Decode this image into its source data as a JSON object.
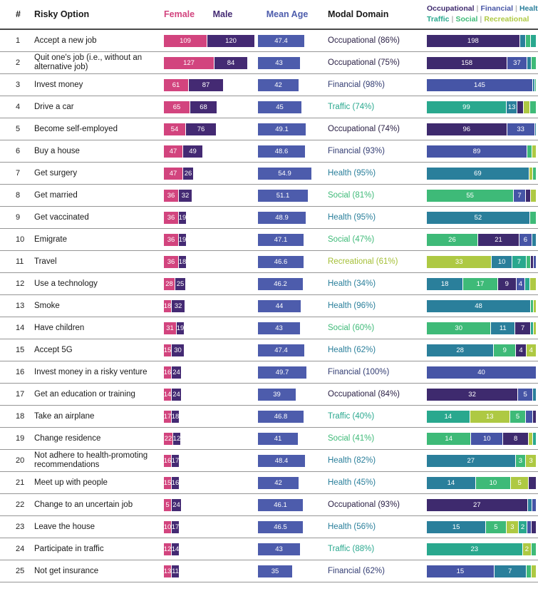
{
  "header": {
    "num": "#",
    "risky_option": "Risky Option",
    "female": "Female",
    "male": "Male",
    "mean_age": "Mean Age",
    "modal_domain": "Modal Domain"
  },
  "legend": {
    "line1": [
      "Occupational",
      "Financial",
      "Health"
    ],
    "line2": [
      "Traffic",
      "Social",
      "Recreational"
    ]
  },
  "colors": {
    "female": "#d2447e",
    "male": "#442a73",
    "mean_age": "#4d5cac",
    "occupational": "#3e2a6e",
    "financial": "#4655a6",
    "health": "#2a7f9b",
    "traffic": "#29a88e",
    "social": "#3eba78",
    "recreational": "#aec943",
    "modal_text": {
      "occupational": "#2b2146",
      "financial": "#323c72",
      "health": "#2a7f9b",
      "traffic": "#29a88e",
      "social": "#3eba78",
      "recreational": "#a4bf35"
    }
  },
  "chart_data": {
    "type": "table",
    "columns": [
      "#",
      "Risky Option",
      "Female",
      "Male",
      "Mean Age",
      "Modal Domain",
      "Domain distribution"
    ],
    "domains": [
      "Occupational",
      "Financial",
      "Health",
      "Traffic",
      "Social",
      "Recreational"
    ],
    "rows": [
      {
        "num": "1",
        "option": "Accept a new job",
        "female": 109,
        "male": 120,
        "mean_age": "47.4",
        "modal": "Occupational (86%)",
        "modal_domain": "occupational",
        "segments": [
          {
            "d": "occupational",
            "v": 198
          },
          {
            "d": "health",
            "v": 11
          },
          {
            "d": "social",
            "v": 10
          },
          {
            "d": "traffic",
            "v": 10
          }
        ]
      },
      {
        "num": "2",
        "option": "Quit one's job (i.e., without an alternative job)",
        "female": 127,
        "male": 84,
        "mean_age": "43",
        "modal": "Occupational (75%)",
        "modal_domain": "occupational",
        "segments": [
          {
            "d": "occupational",
            "v": 158
          },
          {
            "d": "financial",
            "v": 37
          },
          {
            "d": "health",
            "v": 8
          },
          {
            "d": "social",
            "v": 8
          }
        ]
      },
      {
        "num": "3",
        "option": "Invest money",
        "female": 61,
        "male": 87,
        "mean_age": "42",
        "modal": "Financial (98%)",
        "modal_domain": "financial",
        "segments": [
          {
            "d": "financial",
            "v": 145
          },
          {
            "d": "health",
            "v": 2
          },
          {
            "d": "social",
            "v": 1
          }
        ]
      },
      {
        "num": "4",
        "option": "Drive a car",
        "female": 65,
        "male": 68,
        "mean_age": "45",
        "modal": "Traffic (74%)",
        "modal_domain": "traffic",
        "segments": [
          {
            "d": "traffic",
            "v": 99
          },
          {
            "d": "health",
            "v": 13
          },
          {
            "d": "occupational",
            "v": 7
          },
          {
            "d": "recreational",
            "v": 7
          },
          {
            "d": "social",
            "v": 7
          }
        ]
      },
      {
        "num": "5",
        "option": "Become self-employed",
        "female": 54,
        "male": 76,
        "mean_age": "49.1",
        "modal": "Occupational (74%)",
        "modal_domain": "occupational",
        "segments": [
          {
            "d": "occupational",
            "v": 96
          },
          {
            "d": "financial",
            "v": 33
          },
          {
            "d": "health",
            "v": 1
          }
        ]
      },
      {
        "num": "6",
        "option": "Buy a house",
        "female": 47,
        "male": 49,
        "mean_age": "48.6",
        "modal": "Financial (93%)",
        "modal_domain": "financial",
        "segments": [
          {
            "d": "financial",
            "v": 89
          },
          {
            "d": "social",
            "v": 4
          },
          {
            "d": "recreational",
            "v": 3
          }
        ]
      },
      {
        "num": "7",
        "option": "Get surgery",
        "female": 47,
        "male": 26,
        "mean_age": "54.9",
        "modal": "Health (95%)",
        "modal_domain": "health",
        "segments": [
          {
            "d": "health",
            "v": 69
          },
          {
            "d": "recreational",
            "v": 2
          },
          {
            "d": "social",
            "v": 2
          }
        ]
      },
      {
        "num": "8",
        "option": "Get married",
        "female": 36,
        "male": 32,
        "mean_age": "51.1",
        "modal": "Social (81%)",
        "modal_domain": "social",
        "segments": [
          {
            "d": "social",
            "v": 55
          },
          {
            "d": "financial",
            "v": 7
          },
          {
            "d": "occupational",
            "v": 3
          },
          {
            "d": "recreational",
            "v": 3
          }
        ]
      },
      {
        "num": "9",
        "option": "Get vaccinated",
        "female": 36,
        "male": 19,
        "mean_age": "48.9",
        "modal": "Health (95%)",
        "modal_domain": "health",
        "segments": [
          {
            "d": "health",
            "v": 52
          },
          {
            "d": "social",
            "v": 3
          }
        ]
      },
      {
        "num": "10",
        "option": "Emigrate",
        "female": 36,
        "male": 19,
        "mean_age": "47.1",
        "modal": "Social (47%)",
        "modal_domain": "social",
        "segments": [
          {
            "d": "social",
            "v": 26
          },
          {
            "d": "occupational",
            "v": 21
          },
          {
            "d": "financial",
            "v": 6
          },
          {
            "d": "health",
            "v": 2
          }
        ]
      },
      {
        "num": "11",
        "option": "Travel",
        "female": 36,
        "male": 18,
        "mean_age": "46.6",
        "modal": "Recreational (61%)",
        "modal_domain": "recreational",
        "segments": [
          {
            "d": "recreational",
            "v": 33
          },
          {
            "d": "health",
            "v": 10
          },
          {
            "d": "traffic",
            "v": 7
          },
          {
            "d": "social",
            "v": 2
          },
          {
            "d": "occupational",
            "v": 1
          },
          {
            "d": "financial",
            "v": 1
          }
        ]
      },
      {
        "num": "12",
        "option": "Use a technology",
        "female": 28,
        "male": 25,
        "mean_age": "46.2",
        "modal": "Health (34%)",
        "modal_domain": "health",
        "segments": [
          {
            "d": "health",
            "v": 18
          },
          {
            "d": "social",
            "v": 17
          },
          {
            "d": "occupational",
            "v": 9
          },
          {
            "d": "financial",
            "v": 4
          },
          {
            "d": "traffic",
            "v": 2
          },
          {
            "d": "recreational",
            "v": 3
          }
        ]
      },
      {
        "num": "13",
        "option": "Smoke",
        "female": 18,
        "male": 32,
        "mean_age": "44",
        "modal": "Health (96%)",
        "modal_domain": "health",
        "segments": [
          {
            "d": "health",
            "v": 48
          },
          {
            "d": "social",
            "v": 1
          },
          {
            "d": "recreational",
            "v": 1
          }
        ]
      },
      {
        "num": "14",
        "option": "Have children",
        "female": 31,
        "male": 19,
        "mean_age": "43",
        "modal": "Social (60%)",
        "modal_domain": "social",
        "segments": [
          {
            "d": "social",
            "v": 30
          },
          {
            "d": "health",
            "v": 11
          },
          {
            "d": "occupational",
            "v": 7
          },
          {
            "d": "traffic",
            "v": 1
          },
          {
            "d": "recreational",
            "v": 1
          }
        ]
      },
      {
        "num": "15",
        "option": "Accept 5G",
        "female": 15,
        "male": 30,
        "mean_age": "47.4",
        "modal": "Health (62%)",
        "modal_domain": "health",
        "segments": [
          {
            "d": "health",
            "v": 28
          },
          {
            "d": "social",
            "v": 9
          },
          {
            "d": "occupational",
            "v": 4
          },
          {
            "d": "recreational",
            "v": 4
          }
        ]
      },
      {
        "num": "16",
        "option": "Invest money in a risky venture",
        "female": 16,
        "male": 24,
        "mean_age": "49.7",
        "modal": "Financial (100%)",
        "modal_domain": "financial",
        "segments": [
          {
            "d": "financial",
            "v": 40
          }
        ]
      },
      {
        "num": "17",
        "option": "Get an education or training",
        "female": 14,
        "male": 24,
        "mean_age": "39",
        "modal": "Occupational (84%)",
        "modal_domain": "occupational",
        "segments": [
          {
            "d": "occupational",
            "v": 32
          },
          {
            "d": "financial",
            "v": 5
          },
          {
            "d": "health",
            "v": 1
          }
        ]
      },
      {
        "num": "18",
        "option": "Take an airplane",
        "female": 17,
        "male": 18,
        "mean_age": "46.8",
        "modal": "Traffic (40%)",
        "modal_domain": "traffic",
        "segments": [
          {
            "d": "traffic",
            "v": 14
          },
          {
            "d": "recreational",
            "v": 13
          },
          {
            "d": "social",
            "v": 5
          },
          {
            "d": "financial",
            "v": 2
          },
          {
            "d": "occupational",
            "v": 1
          }
        ]
      },
      {
        "num": "19",
        "option": "Change residence",
        "female": 22,
        "male": 12,
        "mean_age": "41",
        "modal": "Social (41%)",
        "modal_domain": "social",
        "segments": [
          {
            "d": "social",
            "v": 14
          },
          {
            "d": "financial",
            "v": 10
          },
          {
            "d": "occupational",
            "v": 8
          },
          {
            "d": "recreational",
            "v": 1
          },
          {
            "d": "traffic",
            "v": 1
          }
        ]
      },
      {
        "num": "20",
        "option": "Not adhere to health-promoting recommendations",
        "female": 16,
        "male": 17,
        "mean_age": "48.4",
        "modal": "Health (82%)",
        "modal_domain": "health",
        "segments": [
          {
            "d": "health",
            "v": 27
          },
          {
            "d": "social",
            "v": 3
          },
          {
            "d": "recreational",
            "v": 3
          }
        ]
      },
      {
        "num": "21",
        "option": "Meet up with people",
        "female": 15,
        "male": 16,
        "mean_age": "42",
        "modal": "Health (45%)",
        "modal_domain": "health",
        "segments": [
          {
            "d": "health",
            "v": 14
          },
          {
            "d": "social",
            "v": 10
          },
          {
            "d": "recreational",
            "v": 5
          },
          {
            "d": "occupational",
            "v": 2
          }
        ]
      },
      {
        "num": "22",
        "option": "Change to an uncertain job",
        "female": 5,
        "male": 24,
        "mean_age": "46.1",
        "modal": "Occupational (93%)",
        "modal_domain": "occupational",
        "segments": [
          {
            "d": "occupational",
            "v": 27
          },
          {
            "d": "health",
            "v": 1
          },
          {
            "d": "financial",
            "v": 1
          }
        ]
      },
      {
        "num": "23",
        "option": "Leave the house",
        "female": 10,
        "male": 17,
        "mean_age": "46.5",
        "modal": "Health (56%)",
        "modal_domain": "health",
        "segments": [
          {
            "d": "health",
            "v": 15
          },
          {
            "d": "social",
            "v": 5
          },
          {
            "d": "recreational",
            "v": 3
          },
          {
            "d": "traffic",
            "v": 2
          },
          {
            "d": "financial",
            "v": 1
          },
          {
            "d": "occupational",
            "v": 1
          }
        ]
      },
      {
        "num": "24",
        "option": "Participate in traffic",
        "female": 12,
        "male": 14,
        "mean_age": "43",
        "modal": "Traffic (88%)",
        "modal_domain": "traffic",
        "segments": [
          {
            "d": "traffic",
            "v": 23
          },
          {
            "d": "recreational",
            "v": 2
          },
          {
            "d": "social",
            "v": 1
          }
        ]
      },
      {
        "num": "25",
        "option": "Not get insurance",
        "female": 13,
        "male": 11,
        "mean_age": "35",
        "modal": "Financial (62%)",
        "modal_domain": "financial",
        "segments": [
          {
            "d": "financial",
            "v": 15
          },
          {
            "d": "health",
            "v": 7
          },
          {
            "d": "social",
            "v": 1
          },
          {
            "d": "recreational",
            "v": 1
          }
        ]
      }
    ]
  }
}
